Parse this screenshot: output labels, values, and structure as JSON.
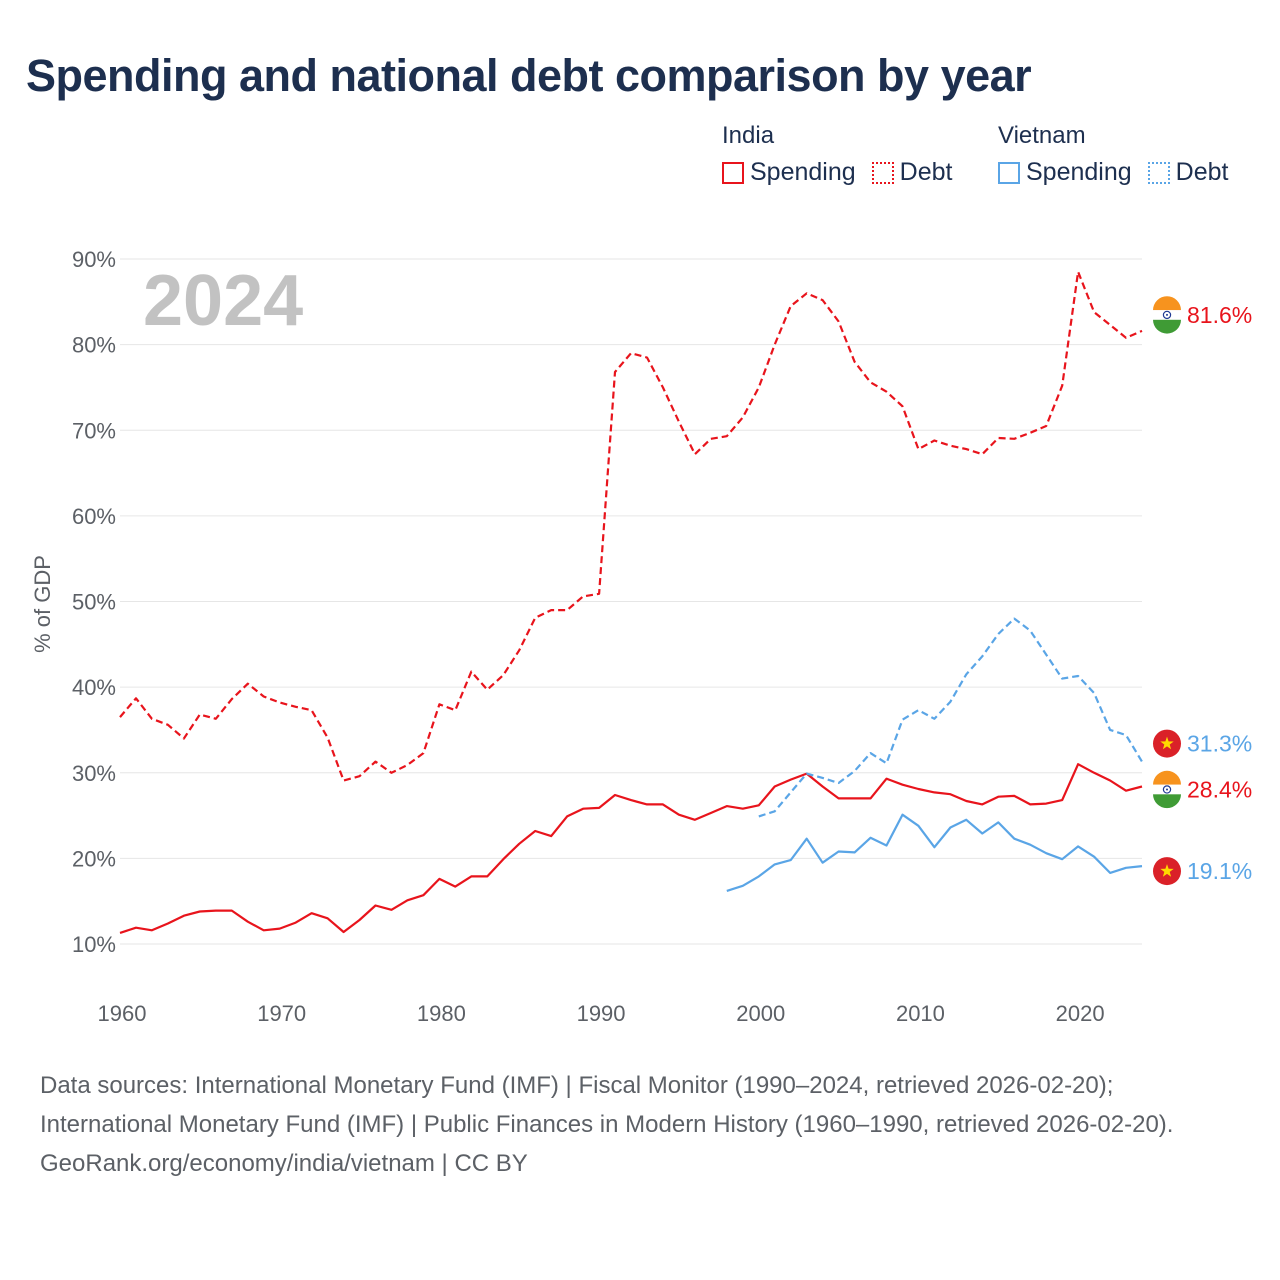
{
  "title": "Spending and national debt comparison by year",
  "legend": {
    "groups": [
      {
        "name": "India",
        "items": [
          {
            "label": "Spending",
            "style": "solid",
            "color": "#e8141c"
          },
          {
            "label": "Debt",
            "style": "dotted",
            "color": "#e8141c"
          }
        ]
      },
      {
        "name": "Vietnam",
        "items": [
          {
            "label": "Spending",
            "style": "solid",
            "color": "#5aa5e6"
          },
          {
            "label": "Debt",
            "style": "dotted",
            "color": "#5aa5e6"
          }
        ]
      }
    ]
  },
  "year_watermark": "2024",
  "footer": {
    "sources": "Data sources: International Monetary Fund (IMF) | Fiscal Monitor (1990–2024, retrieved 2026-02-20); International Monetary Fund (IMF) | Public Finances in Modern History (1960–1990, retrieved 2026-02-20).",
    "credit": "GeoRank.org/economy/india/vietnam | CC BY"
  },
  "colors": {
    "india": "#e8141c",
    "vietnam": "#5aa5e6",
    "axis_text": "#5c6066",
    "grid": "#e6e6e6",
    "title": "#1d2f4f"
  },
  "chart_data": {
    "type": "line",
    "ylabel": "% of GDP",
    "xlabel": "",
    "xlim": [
      1960,
      2024
    ],
    "ylim": [
      10,
      90
    ],
    "xticks": [
      1960,
      1970,
      1980,
      1990,
      2000,
      2010,
      2020
    ],
    "yticks": [
      10,
      20,
      30,
      40,
      50,
      60,
      70,
      80,
      90
    ],
    "ytick_labels": [
      "10%",
      "20%",
      "30%",
      "40%",
      "50%",
      "60%",
      "70%",
      "80%",
      "90%"
    ],
    "series": [
      {
        "name": "India Debt",
        "country": "India",
        "metric": "Debt",
        "color": "#e8141c",
        "dash": true,
        "end_label": "81.6%",
        "end_value": 81.6,
        "x": [
          1960,
          1961,
          1962,
          1963,
          1964,
          1965,
          1966,
          1967,
          1968,
          1969,
          1970,
          1971,
          1972,
          1973,
          1974,
          1975,
          1976,
          1977,
          1978,
          1979,
          1980,
          1981,
          1982,
          1983,
          1984,
          1985,
          1986,
          1987,
          1988,
          1989,
          1990,
          1991,
          1992,
          1993,
          1994,
          1995,
          1996,
          1997,
          1998,
          1999,
          2000,
          2001,
          2002,
          2003,
          2004,
          2005,
          2006,
          2007,
          2008,
          2009,
          2010,
          2011,
          2012,
          2013,
          2014,
          2015,
          2016,
          2017,
          2018,
          2019,
          2020,
          2021,
          2022,
          2023,
          2024
        ],
        "values": [
          36.5,
          38.7,
          36.3,
          35.6,
          34.0,
          36.8,
          36.3,
          38.6,
          40.4,
          38.9,
          38.2,
          37.7,
          37.3,
          34.1,
          29.1,
          29.6,
          31.3,
          30.0,
          30.9,
          32.3,
          38.0,
          37.3,
          41.8,
          39.7,
          41.4,
          44.3,
          48.1,
          49.0,
          49.0,
          50.6,
          50.9,
          76.8,
          79.0,
          78.5,
          75.0,
          71.0,
          67.2,
          69.0,
          69.3,
          71.5,
          75.0,
          80.0,
          84.5,
          86.0,
          85.2,
          82.7,
          78.0,
          75.6,
          74.5,
          72.8,
          67.8,
          68.8,
          68.2,
          67.8,
          67.2,
          69.1,
          69.0,
          69.7,
          70.5,
          75.2,
          88.5,
          83.8,
          82.3,
          80.8,
          81.6
        ]
      },
      {
        "name": "India Spending",
        "country": "India",
        "metric": "Spending",
        "color": "#e8141c",
        "dash": false,
        "end_label": "28.4%",
        "end_value": 28.4,
        "x": [
          1960,
          1961,
          1962,
          1963,
          1964,
          1965,
          1966,
          1967,
          1968,
          1969,
          1970,
          1971,
          1972,
          1973,
          1974,
          1975,
          1976,
          1977,
          1978,
          1979,
          1980,
          1981,
          1982,
          1983,
          1984,
          1985,
          1986,
          1987,
          1988,
          1989,
          1990,
          1991,
          1992,
          1993,
          1994,
          1995,
          1996,
          1997,
          1998,
          1999,
          2000,
          2001,
          2002,
          2003,
          2004,
          2005,
          2006,
          2007,
          2008,
          2009,
          2010,
          2011,
          2012,
          2013,
          2014,
          2015,
          2016,
          2017,
          2018,
          2019,
          2020,
          2021,
          2022,
          2023,
          2024
        ],
        "values": [
          11.3,
          11.9,
          11.6,
          12.4,
          13.3,
          13.8,
          13.9,
          13.9,
          12.6,
          11.6,
          11.8,
          12.5,
          13.6,
          13.0,
          11.4,
          12.8,
          14.5,
          14.0,
          15.1,
          15.7,
          17.6,
          16.7,
          17.9,
          17.9,
          19.9,
          21.7,
          23.2,
          22.6,
          24.9,
          25.8,
          25.9,
          27.4,
          26.8,
          26.3,
          26.3,
          25.1,
          24.5,
          25.3,
          26.1,
          25.8,
          26.2,
          28.4,
          29.2,
          29.9,
          28.4,
          27.0,
          27.0,
          27.0,
          29.3,
          28.6,
          28.1,
          27.7,
          27.5,
          26.7,
          26.3,
          27.2,
          27.3,
          26.3,
          26.4,
          26.8,
          31.0,
          30.0,
          29.1,
          27.9,
          28.4
        ]
      },
      {
        "name": "Vietnam Debt",
        "country": "Vietnam",
        "metric": "Debt",
        "color": "#5aa5e6",
        "dash": true,
        "end_label": "31.3%",
        "end_value": 31.3,
        "x": [
          2000,
          2001,
          2002,
          2003,
          2004,
          2005,
          2006,
          2007,
          2008,
          2009,
          2010,
          2011,
          2012,
          2013,
          2014,
          2015,
          2016,
          2017,
          2018,
          2019,
          2020,
          2021,
          2022,
          2023,
          2024
        ],
        "values": [
          24.9,
          25.5,
          27.7,
          29.9,
          29.4,
          28.8,
          30.2,
          32.3,
          31.1,
          36.2,
          37.3,
          36.3,
          38.3,
          41.5,
          43.6,
          46.2,
          48.0,
          46.6,
          43.8,
          41.0,
          41.3,
          39.3,
          35.0,
          34.4,
          31.3
        ]
      },
      {
        "name": "Vietnam Spending",
        "country": "Vietnam",
        "metric": "Spending",
        "color": "#5aa5e6",
        "dash": false,
        "end_label": "19.1%",
        "end_value": 19.1,
        "x": [
          1998,
          1999,
          2000,
          2001,
          2002,
          2003,
          2004,
          2005,
          2006,
          2007,
          2008,
          2009,
          2010,
          2011,
          2012,
          2013,
          2014,
          2015,
          2016,
          2017,
          2018,
          2019,
          2020,
          2021,
          2022,
          2023,
          2024
        ],
        "values": [
          16.2,
          16.8,
          17.9,
          19.3,
          19.8,
          22.3,
          19.5,
          20.8,
          20.7,
          22.4,
          21.5,
          25.1,
          23.8,
          21.3,
          23.6,
          24.5,
          22.9,
          24.2,
          22.3,
          21.6,
          20.6,
          19.9,
          21.4,
          20.2,
          18.3,
          18.9,
          19.1
        ]
      }
    ]
  }
}
